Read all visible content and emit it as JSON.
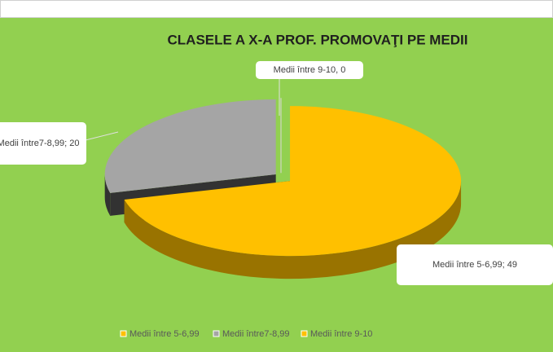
{
  "chart_data": {
    "type": "pie",
    "title": "CLASELE A X-A PROF. PROMOVAŢI PE MEDII",
    "categories": [
      "Medii între 5-6,99",
      "Medii între7-8,99",
      "Medii între 9-10"
    ],
    "values": [
      49,
      20,
      0
    ],
    "value_labels": [
      "Medii între 5-6,99; 49",
      "Medii între7-8,99; 20",
      "Medii între 9-10, 0"
    ],
    "colors": [
      "#ffc000",
      "#a5a5a5",
      "#ffc000"
    ],
    "legend": "bottom"
  }
}
